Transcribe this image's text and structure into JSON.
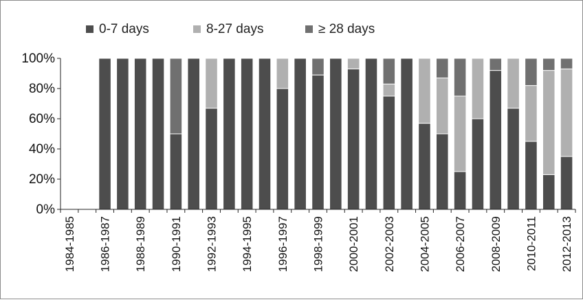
{
  "chart_data": {
    "type": "bar",
    "stacked": true,
    "stack_mode": "percent",
    "categories": [
      "1984-1985",
      "1985-1986",
      "1986-1987",
      "1987-1988",
      "1988-1989",
      "1989-1990",
      "1990-1991",
      "1991-1992",
      "1992-1993",
      "1993-1994",
      "1994-1995",
      "1995-1996",
      "1996-1997",
      "1997-1998",
      "1998-1999",
      "1999-2000",
      "2000-2001",
      "2001-2002",
      "2002-2003",
      "2003-2004",
      "2004-2005",
      "2005-2006",
      "2006-2007",
      "2007-2008",
      "2008-2009",
      "2009-2010",
      "2010-2011",
      "2011-2012",
      "2012-2013"
    ],
    "x_tick_labels": [
      "1984-1985",
      "1986-1987",
      "1988-1989",
      "1990-1991",
      "1992-1993",
      "1994-1995",
      "1996-1997",
      "1998-1999",
      "2000-2001",
      "2002-2003",
      "2004-2005",
      "2006-2007",
      "2008-2009",
      "2010-2011",
      "2012-2013"
    ],
    "series": [
      {
        "name": "0-7 days",
        "values": [
          0,
          0,
          100,
          100,
          100,
          100,
          50,
          100,
          67,
          100,
          100,
          100,
          80,
          100,
          89,
          100,
          93,
          100,
          75,
          100,
          57,
          50,
          25,
          60,
          92,
          67,
          45,
          23,
          35
        ]
      },
      {
        "name": "8-27 days",
        "values": [
          0,
          0,
          0,
          0,
          0,
          0,
          0,
          0,
          33,
          0,
          0,
          0,
          20,
          0,
          0,
          0,
          7,
          0,
          8,
          0,
          43,
          37,
          50,
          40,
          0,
          33,
          37,
          69,
          58
        ]
      },
      {
        "name": "≥ 28 days",
        "values": [
          0,
          0,
          0,
          0,
          0,
          0,
          50,
          0,
          0,
          0,
          0,
          0,
          0,
          0,
          11,
          0,
          0,
          0,
          17,
          0,
          0,
          13,
          25,
          0,
          8,
          0,
          18,
          8,
          7
        ]
      }
    ],
    "ylim": [
      0,
      100
    ],
    "y_ticks": [
      "0%",
      "20%",
      "40%",
      "60%",
      "80%",
      "100%"
    ],
    "legend_position": "top",
    "grid": false,
    "colors": {
      "0-7 days": "#4d4d4d",
      "8-27 days": "#b0b0b0",
      "≥ 28 days": "#707070",
      "bar_outline": "#ffffff",
      "axis": "#222222",
      "frame": "#8a8a8a"
    }
  }
}
